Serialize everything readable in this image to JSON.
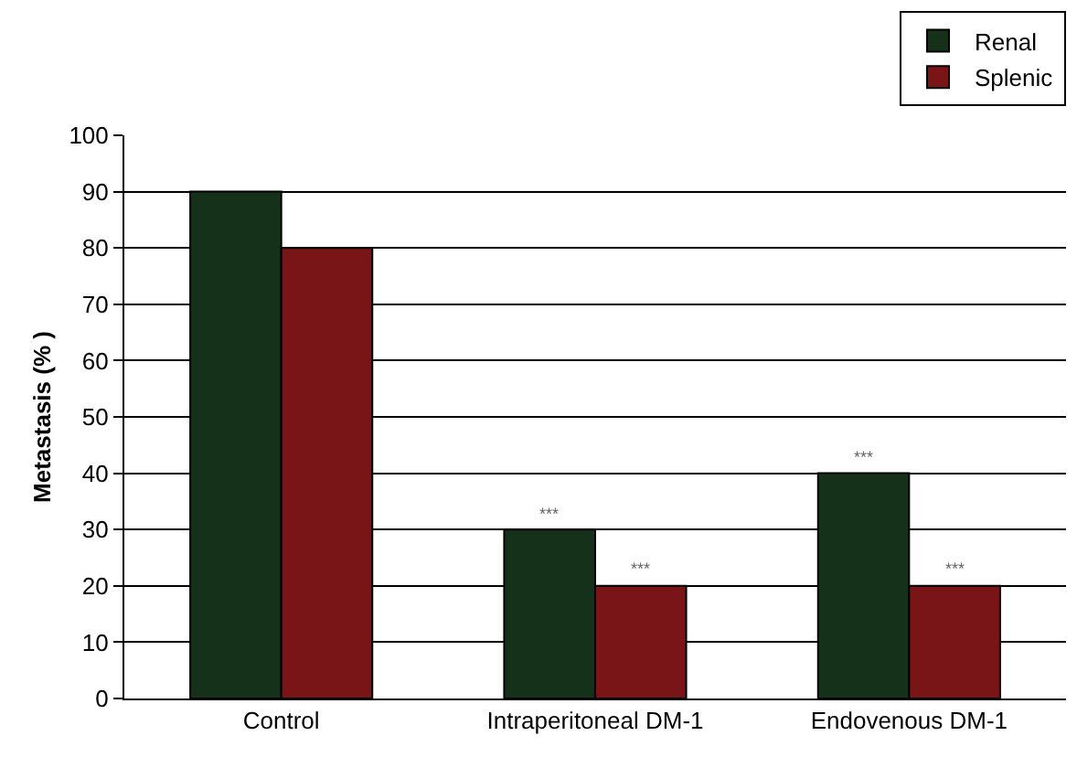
{
  "chart_data": {
    "type": "bar",
    "categories": [
      "Control",
      "Intraperitoneal DM-1",
      "Endovenous DM-1"
    ],
    "ylabel": "Metastasis (% )",
    "series": [
      {
        "name": "Renal",
        "color": "#16311a",
        "values": [
          90,
          30,
          40
        ]
      },
      {
        "name": "Splenic",
        "color": "#7a1517",
        "values": [
          80,
          20,
          20
        ]
      }
    ],
    "ylim": [
      0,
      100
    ],
    "yticks": [
      0,
      10,
      20,
      30,
      40,
      50,
      60,
      70,
      80,
      90,
      100
    ],
    "grid": "y",
    "legend": "top right",
    "annotations": [
      {
        "text": "***",
        "x": "Intraperitoneal DM-1",
        "y": 30
      },
      {
        "text": "***",
        "x": "Intraperitoneal DM-1",
        "y": 20
      },
      {
        "text": "***",
        "x": "Endovenous DM-1",
        "y": 40
      },
      {
        "text": "***",
        "x": "Endovenous DM-1",
        "y": 20
      }
    ]
  }
}
